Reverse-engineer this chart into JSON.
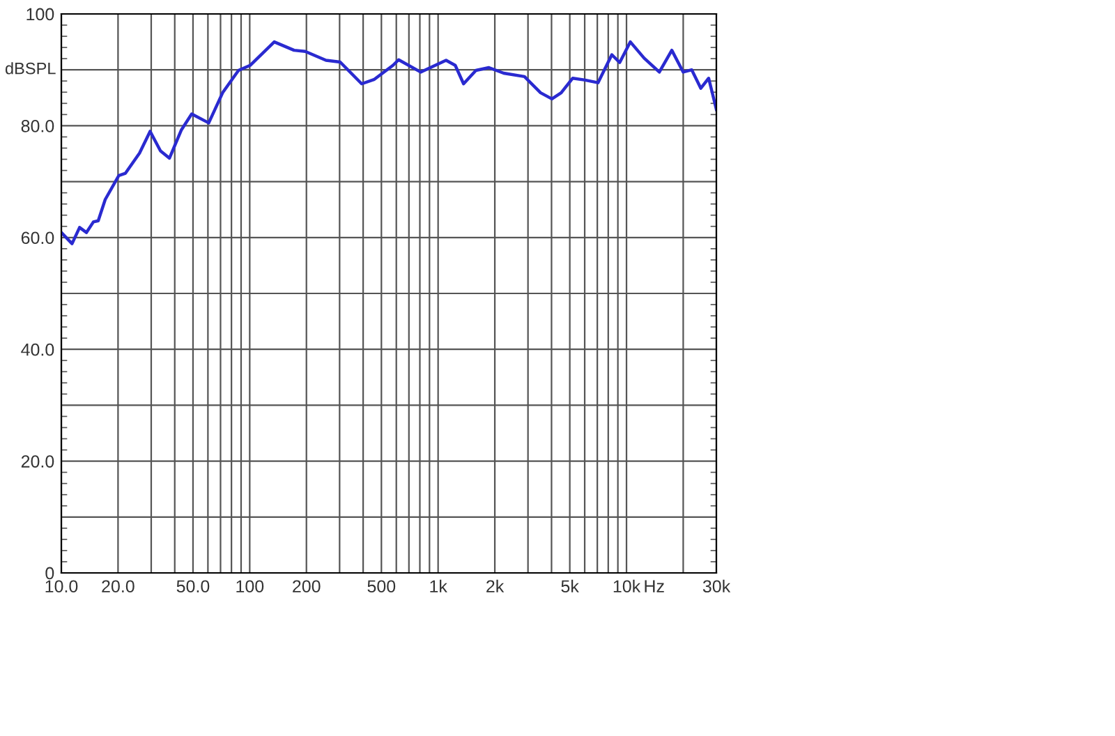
{
  "chart_data": {
    "type": "line",
    "xlabel": "Hz",
    "ylabel": "dBSPL",
    "log": "x",
    "grid": true,
    "legend": false,
    "marker": "none",
    "line_style": "solid",
    "xlim": [
      10,
      30000
    ],
    "ylim": [
      0,
      100
    ],
    "xticks": [
      {
        "value": 10,
        "label": "10.0"
      },
      {
        "value": 20,
        "label": "20.0"
      },
      {
        "value": 30,
        "label": null
      },
      {
        "value": 40,
        "label": null
      },
      {
        "value": 50,
        "label": "50.0"
      },
      {
        "value": 60,
        "label": null
      },
      {
        "value": 70,
        "label": null
      },
      {
        "value": 80,
        "label": null
      },
      {
        "value": 90,
        "label": null
      },
      100,
      200,
      {
        "value": 300,
        "label": null
      },
      {
        "value": 400,
        "label": null
      },
      500,
      {
        "value": 600,
        "label": null
      },
      {
        "value": 700,
        "label": null
      },
      {
        "value": 800,
        "label": null
      },
      {
        "value": 900,
        "label": null
      },
      {
        "value": 1000,
        "label": "1k"
      },
      {
        "value": 2000,
        "label": "2k"
      },
      {
        "value": 3000,
        "label": null
      },
      {
        "value": 4000,
        "label": null
      },
      {
        "value": 5000,
        "label": "5k"
      },
      {
        "value": 6000,
        "label": null
      },
      {
        "value": 7000,
        "label": null
      },
      {
        "value": 8000,
        "label": null
      },
      {
        "value": 9000,
        "label": null
      },
      {
        "value": 10000,
        "label": "10k"
      },
      {
        "value": 20000,
        "label": null
      },
      {
        "value": 30000,
        "label": "30k"
      }
    ],
    "yticks": [
      0,
      {
        "value": 10,
        "label": null
      },
      {
        "value": 20,
        "label": "20.0"
      },
      {
        "value": 30,
        "label": null
      },
      {
        "value": 40,
        "label": "40.0"
      },
      {
        "value": 50,
        "label": null
      },
      {
        "value": 60,
        "label": "60.0"
      },
      {
        "value": 70,
        "label": null
      },
      {
        "value": 80,
        "label": "80.0"
      },
      {
        "value": 90,
        "label": null
      },
      100
    ],
    "series": [
      {
        "color": "#2a2ad0",
        "x": [
          10,
          11.4,
          12.5,
          13.6,
          14.8,
          15.7,
          17.1,
          20.2,
          21.9,
          26,
          29.6,
          33.6,
          37.5,
          43.3,
          49.2,
          60.6,
          71.8,
          87.2,
          100.5,
          135,
          172,
          197,
          254,
          302,
          393,
          459,
          576,
          617,
          808,
          1102,
          1233,
          1365,
          1588,
          1861,
          2229,
          2873,
          3500,
          4018,
          4500,
          5183,
          5960,
          7060,
          8360,
          9200,
          10480,
          12400,
          14940,
          17400,
          20000,
          22200,
          24800,
          27300,
          30000
        ],
        "values": [
          60.9,
          58.9,
          61.8,
          60.9,
          62.8,
          63.0,
          66.8,
          71.1,
          71.5,
          75.1,
          79.0,
          75.5,
          74.2,
          79.2,
          82.1,
          80.5,
          85.9,
          89.9,
          90.8,
          95.0,
          93.5,
          93.3,
          91.7,
          91.4,
          87.5,
          88.3,
          90.8,
          91.8,
          89.6,
          91.7,
          90.8,
          87.5,
          89.9,
          90.4,
          89.4,
          88.8,
          85.9,
          84.8,
          85.9,
          88.5,
          88.2,
          87.7,
          92.7,
          91.3,
          95.0,
          92.1,
          89.6,
          93.5,
          89.6,
          90.0,
          86.7,
          88.5,
          82.9
        ]
      }
    ]
  }
}
